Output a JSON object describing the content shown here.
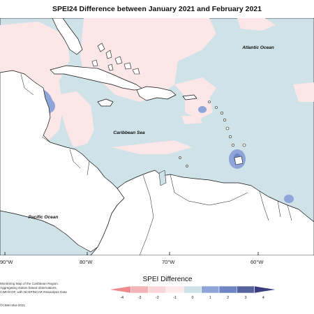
{
  "title": "SPEI24 Difference between January 2021 and February 2021",
  "labels": {
    "atlantic": "Atlantic Ocean",
    "caribbean": "Caribbean Sea",
    "pacific": "Pacific Ocean"
  },
  "lon_labels": [
    "90°W",
    "80°W",
    "70°W",
    "60°W"
  ],
  "credit_lines": [
    "Monitoring Map of the Caribbean Region.",
    "Aggregating station based observations,",
    "CIMH/CDF, with NCEP/NCAR Reanalysis Data"
  ],
  "footer_credit": "©CIMH Mar-2021",
  "legend": {
    "title": "SPEI Difference",
    "ticks": [
      "-4",
      "-3",
      "-2",
      "-1",
      "0",
      "1",
      "2",
      "3",
      "4"
    ],
    "colors": [
      "#f08a8c",
      "#f4b3b6",
      "#f9d6d8",
      "#fde9ea",
      "#cfe2e8",
      "#8fa5d9",
      "#6f86c4",
      "#55639f",
      "#3b3f80"
    ]
  }
}
